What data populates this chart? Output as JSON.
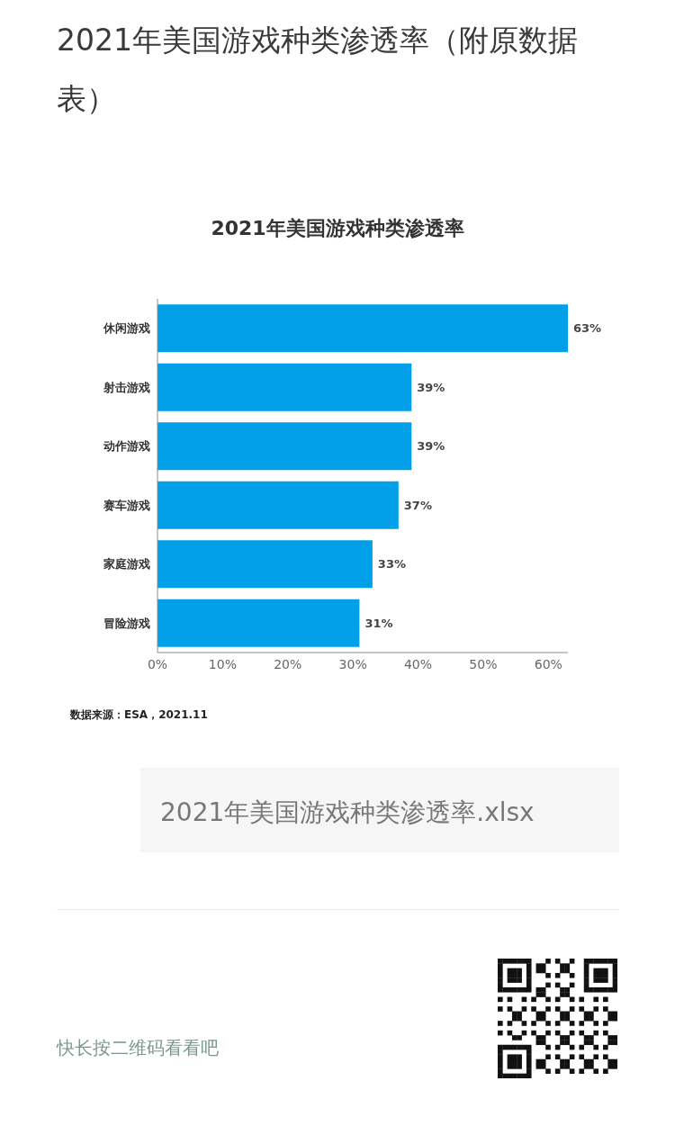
{
  "chart_data": {
    "type": "bar",
    "orientation": "horizontal",
    "title": "2021年美国游戏种类渗透率",
    "categories": [
      "休闲游戏",
      "射击游戏",
      "动作游戏",
      "赛车游戏",
      "家庭游戏",
      "冒险游戏"
    ],
    "values": [
      63,
      39,
      39,
      37,
      33,
      31
    ],
    "color": "#019fe8",
    "value_labels": [
      "63%",
      "39%",
      "39%",
      "37%",
      "33%",
      "31%"
    ],
    "xlim": [
      0,
      63
    ],
    "xticks": [
      {
        "value": 0,
        "label": "0%"
      },
      {
        "value": 10,
        "label": "10%"
      },
      {
        "value": 20,
        "label": "20%"
      },
      {
        "value": 30,
        "label": "30%"
      },
      {
        "value": 40,
        "label": "40%"
      },
      {
        "value": 50,
        "label": "50%"
      },
      {
        "value": 60,
        "label": "60%"
      }
    ],
    "annotations": [
      "2021年美国游戏种类渗透率（附原数据表）",
      "数据来源：ESA，2021.11",
      "2021年美国游戏种类渗透率.xlsx",
      "快长按二维码看看吧"
    ]
  }
}
